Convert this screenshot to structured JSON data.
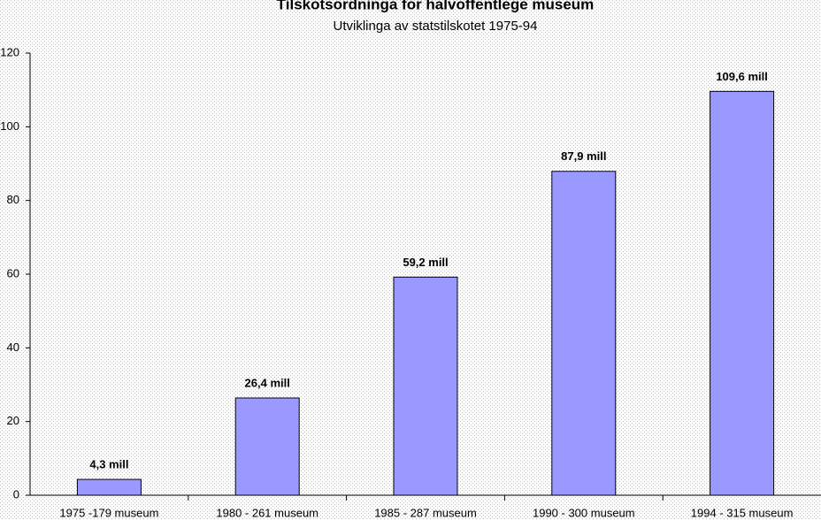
{
  "chart_data": {
    "type": "bar",
    "title": "Tilskotsordninga for halvoffentlege museum",
    "subtitle": "Utviklinga av statstilskotet 1975-94",
    "categories": [
      "1975 -179 museum",
      "1980 - 261 museum",
      "1985 - 287 museum",
      "1990 - 300 museum",
      "1994 - 315 museum"
    ],
    "values": [
      4.3,
      26.4,
      59.2,
      87.9,
      109.6
    ],
    "value_labels": [
      "4,3 mill",
      "26,4 mill",
      "59,2 mill",
      "87,9 mill",
      "109,6 mill"
    ],
    "color": "#9999ff",
    "ylim": [
      0,
      120
    ],
    "yticks": [
      0,
      20,
      40,
      60,
      80,
      100,
      120
    ]
  }
}
